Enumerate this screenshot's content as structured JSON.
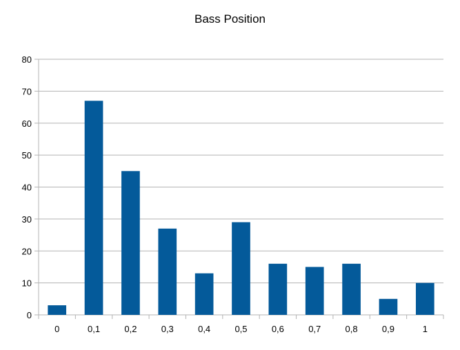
{
  "chart_data": {
    "type": "bar",
    "title": "Bass Position",
    "xlabel": "",
    "ylabel": "",
    "categories": [
      "0",
      "0,1",
      "0,2",
      "0,3",
      "0,4",
      "0,5",
      "0,6",
      "0,7",
      "0,8",
      "0,9",
      "1"
    ],
    "values": [
      3,
      67,
      45,
      27,
      13,
      29,
      16,
      15,
      16,
      5,
      10
    ],
    "ylim": [
      0,
      80
    ],
    "yticks": [
      "0",
      "10",
      "20",
      "30",
      "40",
      "50",
      "60",
      "70",
      "80"
    ],
    "grid": true,
    "legend": "none",
    "bar_color": "#045a9a",
    "grid_color": "#b3b3b3"
  }
}
